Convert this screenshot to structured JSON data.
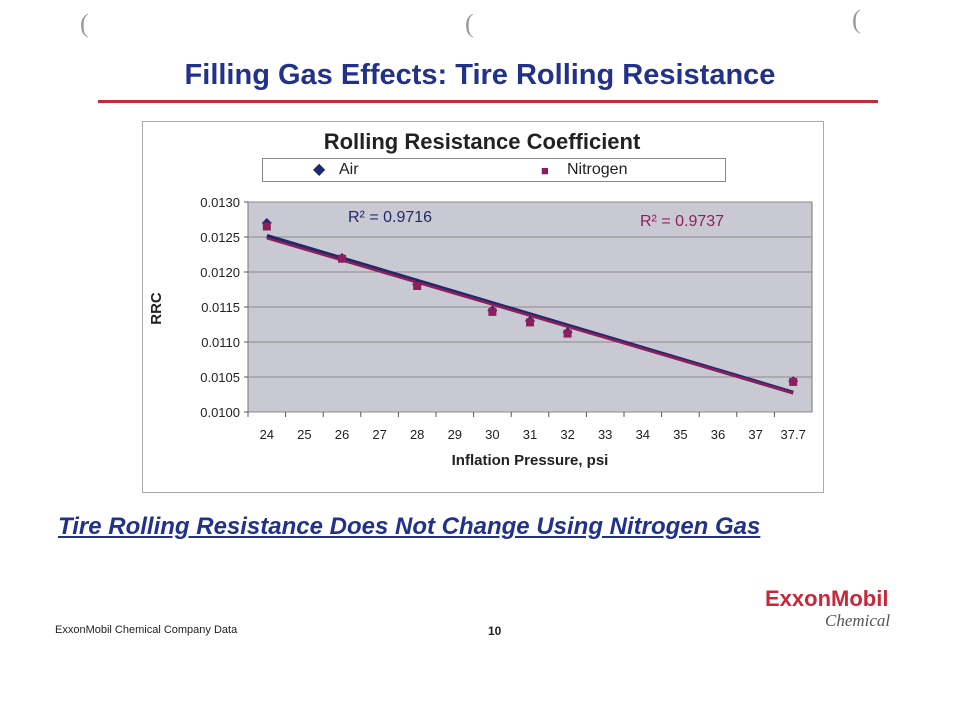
{
  "slide": {
    "title": "Filling Gas Effects: Tire Rolling Resistance",
    "tagline": "Tire Rolling Resistance Does Not Change Using Nitrogen Gas",
    "footer": "ExxonMobil Chemical Company Data",
    "page_number": "10",
    "logo_main": "ExxonMobil",
    "logo_sub": "Chemical"
  },
  "chart_data": {
    "type": "line",
    "title": "Rolling Resistance Coefficient",
    "xlabel": "Inflation Pressure, psi",
    "ylabel": "RRC",
    "categories": [
      "24",
      "25",
      "26",
      "27",
      "28",
      "29",
      "30",
      "31",
      "32",
      "33",
      "34",
      "35",
      "36",
      "37",
      "37.7"
    ],
    "ylim": [
      0.01,
      0.013
    ],
    "yticks": [
      "0.0100",
      "0.0105",
      "0.0110",
      "0.0115",
      "0.0120",
      "0.0125",
      "0.0130"
    ],
    "grid": true,
    "legend": "top",
    "series": [
      {
        "name": "Air",
        "marker": "diamond",
        "color": "#1f2a6b",
        "x": [
          "24",
          "26",
          "28",
          "30",
          "31",
          "32",
          "37.7"
        ],
        "values": [
          0.0127,
          0.0122,
          0.01182,
          0.01145,
          0.0113,
          0.01114,
          0.01044
        ],
        "trendline": "linear",
        "r2_label": "R² = 0.9716"
      },
      {
        "name": "Nitrogen",
        "marker": "square",
        "color": "#8e1f5e",
        "x": [
          "24",
          "26",
          "28",
          "30",
          "31",
          "32",
          "37.7"
        ],
        "values": [
          0.01265,
          0.01219,
          0.0118,
          0.01143,
          0.01128,
          0.01112,
          0.01043
        ],
        "trendline": "linear",
        "r2_label": "R² = 0.9737"
      }
    ]
  }
}
